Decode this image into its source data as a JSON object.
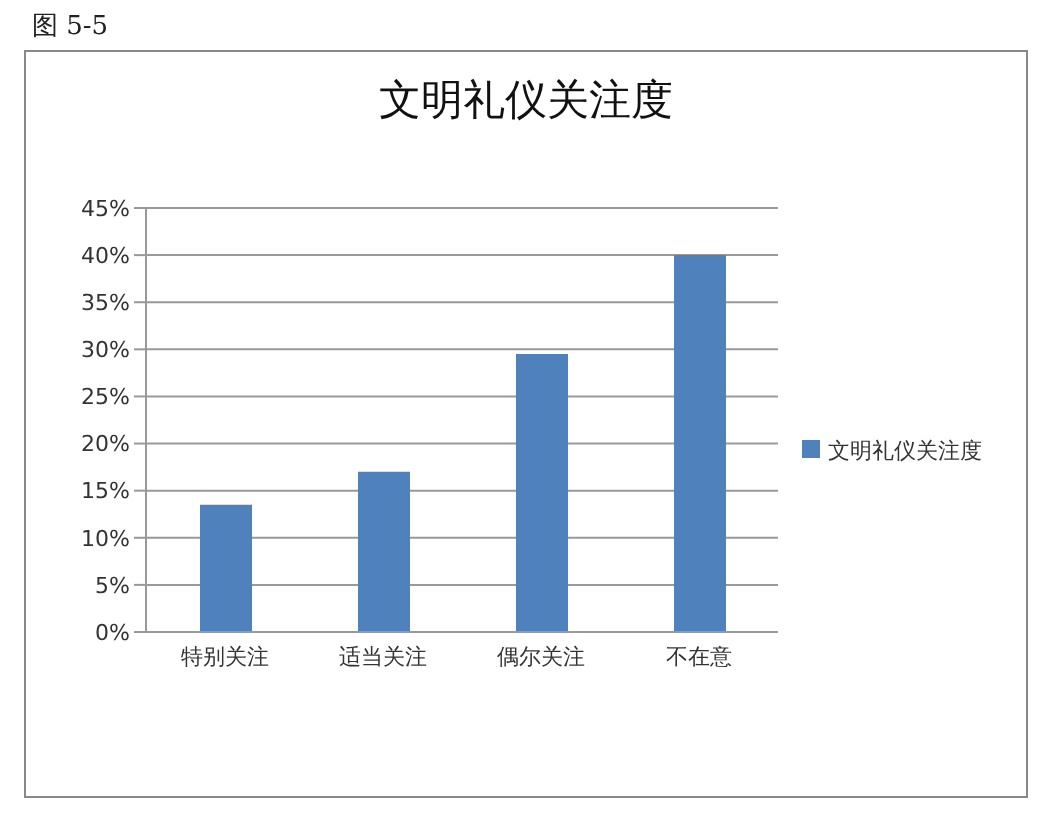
{
  "chart_data": {
    "type": "bar",
    "title": "文明礼仪关注度",
    "annotations": [
      "图 5-5"
    ],
    "categories": [
      "特别关注",
      "适当关注",
      "偶尔关注",
      "不在意"
    ],
    "series": [
      {
        "name": "文明礼仪关注度",
        "color": "#4f81bd",
        "values": [
          13.5,
          17,
          29.5,
          40
        ]
      }
    ],
    "ylim": [
      0,
      45
    ],
    "yticks": [
      {
        "value": 0,
        "label": "0%"
      },
      {
        "value": 5,
        "label": "5%"
      },
      {
        "value": 10,
        "label": "10%"
      },
      {
        "value": 15,
        "label": "15%"
      },
      {
        "value": 20,
        "label": "20%"
      },
      {
        "value": 25,
        "label": "25%"
      },
      {
        "value": 30,
        "label": "30%"
      },
      {
        "value": 35,
        "label": "35%"
      },
      {
        "value": 40,
        "label": "40%"
      },
      {
        "value": 45,
        "label": "45%"
      }
    ],
    "grid": "y",
    "legend": "right"
  }
}
